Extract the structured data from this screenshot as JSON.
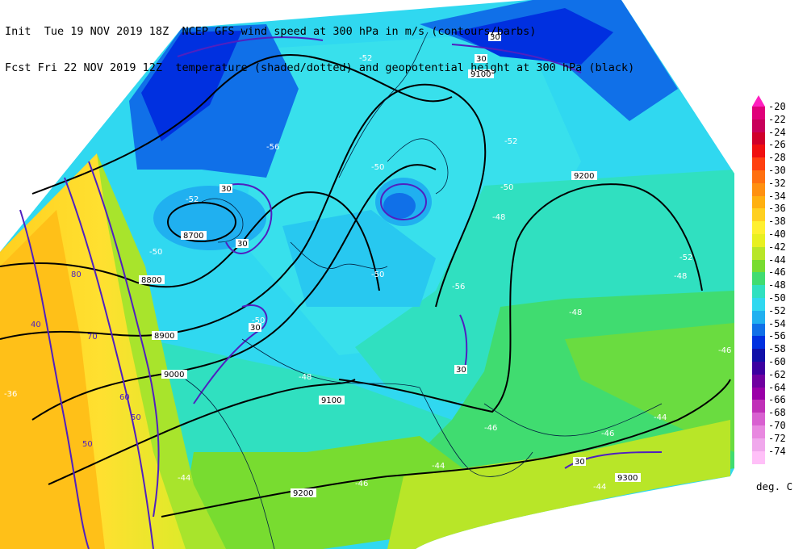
{
  "header": {
    "line1": "Init  Tue 19 NOV 2019 18Z  NCEP GFS wind speed at 300 hPa in m/s (contours/barbs)",
    "line2": "Fcst Fri 22 NOV 2019 12Z  temperature (shaded/dotted) and geopotential height at 300 hPa (black)"
  },
  "colorbar": {
    "top_color": "#ff1fbf",
    "levels": [
      {
        "label": "-20",
        "color": "#e0007a"
      },
      {
        "label": "-22",
        "color": "#c8005a"
      },
      {
        "label": "-24",
        "color": "#d0002a"
      },
      {
        "label": "-26",
        "color": "#f01010"
      },
      {
        "label": "-28",
        "color": "#ff4010"
      },
      {
        "label": "-30",
        "color": "#ff7010"
      },
      {
        "label": "-32",
        "color": "#ff9010"
      },
      {
        "label": "-34",
        "color": "#ffb010"
      },
      {
        "label": "-36",
        "color": "#ffd020"
      },
      {
        "label": "-38",
        "color": "#fff030"
      },
      {
        "label": "-40",
        "color": "#e8f020"
      },
      {
        "label": "-42",
        "color": "#b8e628"
      },
      {
        "label": "-44",
        "color": "#78dc30"
      },
      {
        "label": "-46",
        "color": "#40dc70"
      },
      {
        "label": "-48",
        "color": "#30e0c0"
      },
      {
        "label": "-50",
        "color": "#30d8f0"
      },
      {
        "label": "-52",
        "color": "#20b0f0"
      },
      {
        "label": "-54",
        "color": "#1070e8"
      },
      {
        "label": "-56",
        "color": "#0030e0"
      },
      {
        "label": "-58",
        "color": "#1010a8"
      },
      {
        "label": "-60",
        "color": "#3c00a0"
      },
      {
        "label": "-62",
        "color": "#7000a0"
      },
      {
        "label": "-64",
        "color": "#9a00a8"
      },
      {
        "label": "-66",
        "color": "#c030b8"
      },
      {
        "label": "-68",
        "color": "#d860d0"
      },
      {
        "label": "-70",
        "color": "#e888e0"
      },
      {
        "label": "-72",
        "color": "#f0a8ec"
      },
      {
        "label": "-74",
        "color": "#ffc0f8"
      }
    ]
  },
  "unit_label": "deg. C",
  "map": {
    "height_labels": [
      "8700",
      "8800",
      "8900",
      "9000",
      "9100",
      "9200",
      "9200",
      "9300",
      "9100",
      "9200"
    ],
    "temp_labels": [
      "-52",
      "-50",
      "-56",
      "-52",
      "-50",
      "-48",
      "-48",
      "-52",
      "-50",
      "-52",
      "-56",
      "-50",
      "-50",
      "-48",
      "-46",
      "-46",
      "-44",
      "-44",
      "-44",
      "-46",
      "-48",
      "-46",
      "-44",
      "-36"
    ],
    "wind_labels": [
      "30",
      "30",
      "30",
      "30",
      "30",
      "30",
      "30",
      "50",
      "60",
      "70",
      "80",
      "50",
      "40"
    ]
  }
}
